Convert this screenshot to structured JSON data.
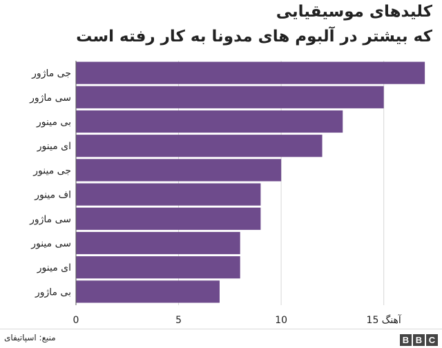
{
  "title_line1": "کلیدهای موسیقیایی",
  "title_line2": "که بیشتر در آلبوم های مدونا به کار رفته است",
  "source": "منبع: اسپاتیفای",
  "logo": [
    "B",
    "B",
    "C"
  ],
  "chart_data": {
    "type": "bar",
    "orientation": "horizontal",
    "categories": [
      "جی ماژور",
      "سی ماژور",
      "بی مینور",
      "ای مینور",
      "جی مینور",
      "اف مینور",
      "سی ماژور",
      "سی مینور",
      "ای مینور",
      "بی ماژور"
    ],
    "values": [
      17,
      15,
      13,
      12,
      10,
      9,
      9,
      8,
      8,
      7
    ],
    "xlim": [
      0,
      17.4
    ],
    "xticks": [
      0,
      5,
      10,
      15
    ],
    "xtick_labels": [
      "0",
      "5",
      "10",
      "15 آهنگ"
    ],
    "grid": true,
    "bar_color": "#6e4b8c"
  }
}
